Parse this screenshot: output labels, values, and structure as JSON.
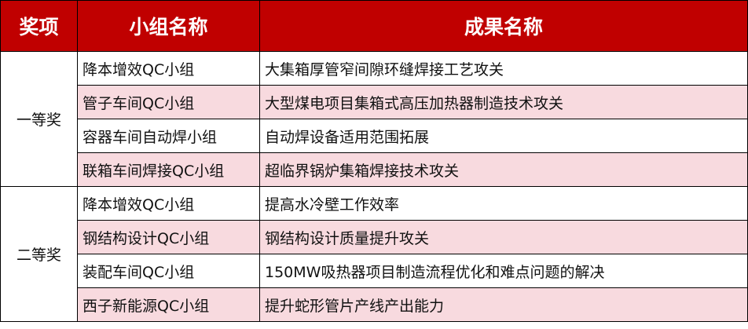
{
  "header": {
    "award": "奖项",
    "group": "小组名称",
    "result": "成果名称"
  },
  "colors": {
    "header_bg": "#C00000",
    "stripe": "#F8DADF"
  },
  "sections": [
    {
      "award": "一等奖",
      "rows": [
        {
          "group": "降本增效QC小组",
          "result": "大集箱厚管窄间隙环缝焊接工艺攻关"
        },
        {
          "group": "管子车间QC小组",
          "result": "大型煤电项目集箱式高压加热器制造技术攻关"
        },
        {
          "group": "容器车间自动焊小组",
          "result": "自动焊设备适用范围拓展"
        },
        {
          "group": "联箱车间焊接QC小组",
          "result": "超临界锅炉集箱焊接技术攻关"
        }
      ]
    },
    {
      "award": "二等奖",
      "rows": [
        {
          "group": "降本增效QC小组",
          "result": "提高水冷壁工作效率"
        },
        {
          "group": "钢结构设计QC小组",
          "result": "钢结构设计质量提升攻关"
        },
        {
          "group": "装配车间QC小组",
          "result": "150MW吸热器项目制造流程优化和难点问题的解决"
        },
        {
          "group": "西子新能源QC小组",
          "result": "提升蛇形管片产线产出能力"
        }
      ]
    }
  ]
}
